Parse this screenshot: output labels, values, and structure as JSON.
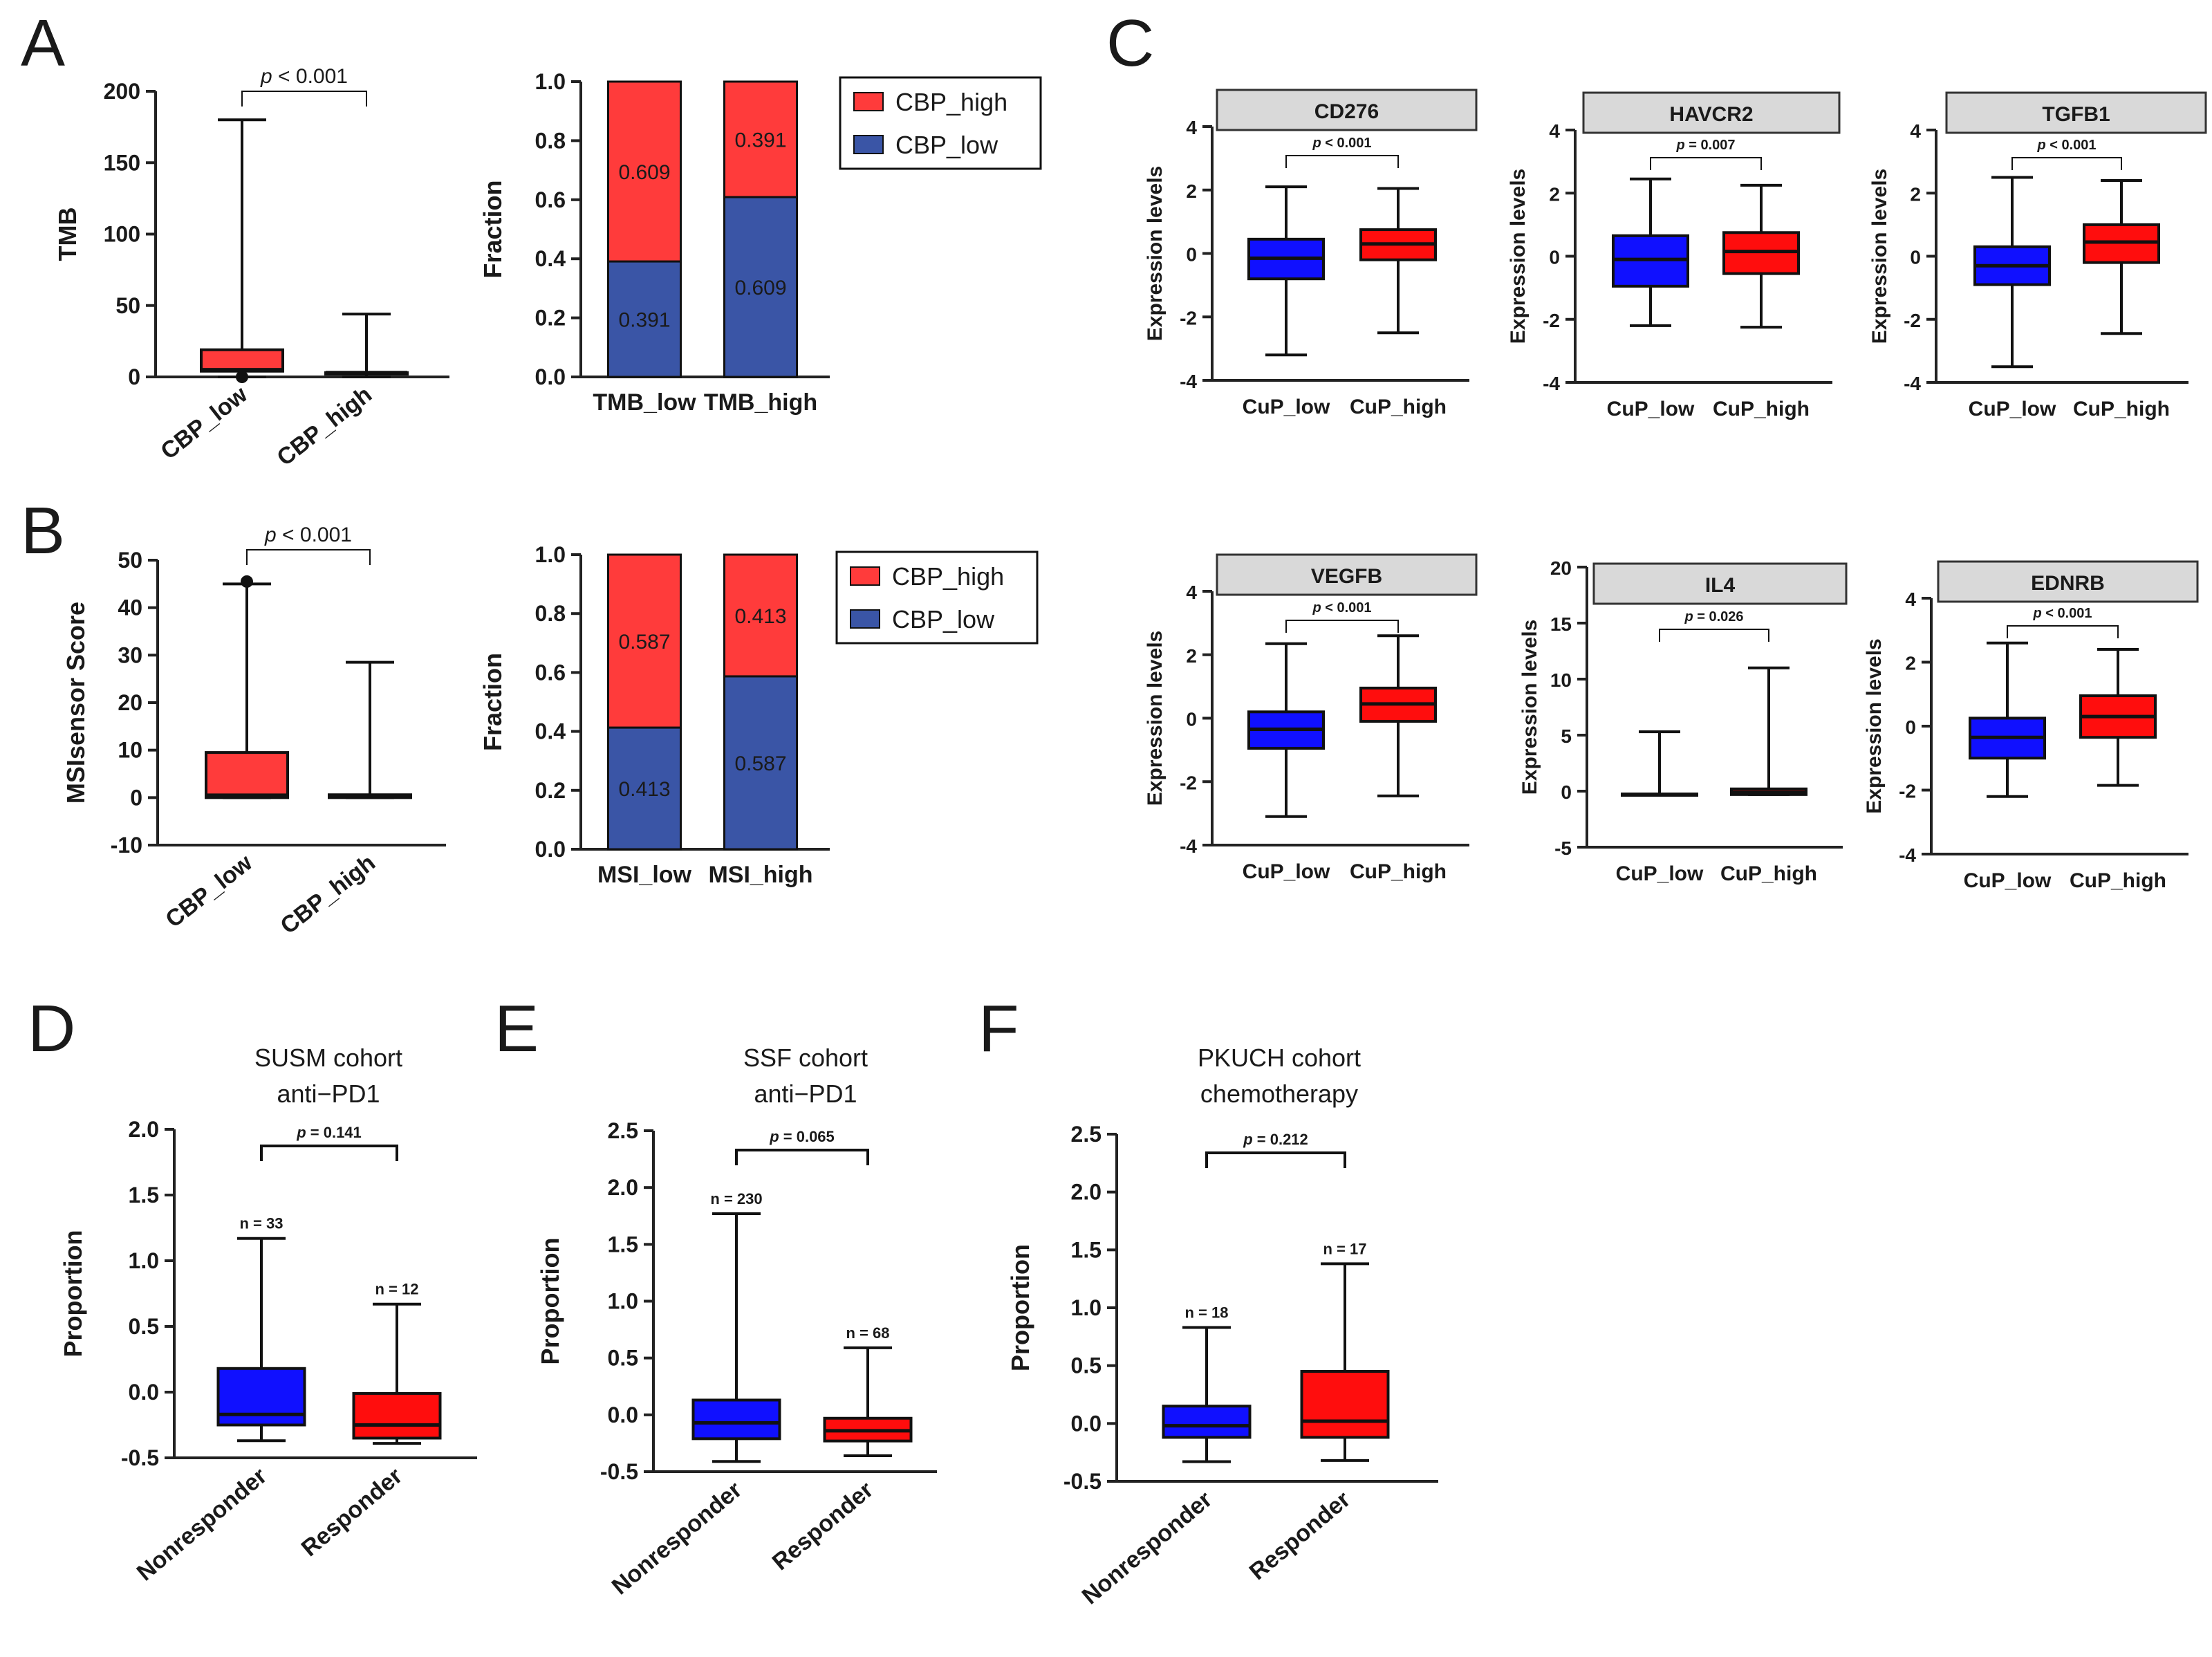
{
  "figure": {
    "colors": {
      "red": "#ff3b3b",
      "blue": "#3a55a6",
      "box_blue": "#1010ff",
      "box_red": "#ff0d0d",
      "strip": "#d9d9d9"
    },
    "panels": {
      "A": "A",
      "B": "B",
      "C": "C",
      "D": "D",
      "E": "E",
      "F": "F"
    }
  },
  "chart_data": [
    {
      "id": "A_box",
      "type": "box",
      "panel": "A",
      "ylabel": "TMB",
      "ylim": [
        0,
        200
      ],
      "yticks": [
        "0",
        "50",
        "100",
        "150",
        "200"
      ],
      "categories": [
        "CBP_low",
        "CBP_high"
      ],
      "boxes": [
        {
          "min": 0,
          "q1": 4,
          "median": 5,
          "q3": 19,
          "max": 180,
          "color": "#ff3b3b",
          "outlier": 0
        },
        {
          "min": 0,
          "q1": 2,
          "median": 3,
          "q3": 3,
          "max": 44,
          "color": "#3a55a6"
        }
      ],
      "pvalue": "p < 0.001"
    },
    {
      "id": "A_bar",
      "type": "bar",
      "stacked": true,
      "panel": "A",
      "ylabel": "Fraction",
      "ylim": [
        0,
        1
      ],
      "yticks": [
        "0.0",
        "0.2",
        "0.4",
        "0.6",
        "0.8",
        "1.0"
      ],
      "categories": [
        "TMB_low",
        "TMB_high"
      ],
      "series": [
        {
          "name": "CBP_low",
          "values": [
            0.391,
            0.609
          ],
          "labels": [
            "0.391",
            "0.609"
          ]
        },
        {
          "name": "CBP_high",
          "values": [
            0.609,
            0.391
          ],
          "labels": [
            "0.609",
            "0.391"
          ]
        }
      ],
      "legend": [
        "CBP_high",
        "CBP_low"
      ]
    },
    {
      "id": "B_box",
      "type": "box",
      "panel": "B",
      "ylabel": "MSIsensor Score",
      "ylim": [
        -10,
        50
      ],
      "yticks": [
        "-10",
        "0",
        "10",
        "20",
        "30",
        "40",
        "50"
      ],
      "categories": [
        "CBP_low",
        "CBP_high"
      ],
      "boxes": [
        {
          "min": 0,
          "q1": 0,
          "median": 0.5,
          "q3": 9.5,
          "max": 45,
          "color": "#ff3b3b",
          "outlier": 45.5
        },
        {
          "min": 0,
          "q1": 0,
          "median": 0.3,
          "q3": 0.6,
          "max": 28.5,
          "color": "#3a55a6"
        }
      ],
      "pvalue": "p < 0.001"
    },
    {
      "id": "B_bar",
      "type": "bar",
      "stacked": true,
      "panel": "B",
      "ylabel": "Fraction",
      "ylim": [
        0,
        1
      ],
      "yticks": [
        "0.0",
        "0.2",
        "0.4",
        "0.6",
        "0.8",
        "1.0"
      ],
      "categories": [
        "MSI_low",
        "MSI_high"
      ],
      "series": [
        {
          "name": "CBP_low",
          "values": [
            0.413,
            0.587
          ],
          "labels": [
            "0.413",
            "0.587"
          ]
        },
        {
          "name": "CBP_high",
          "values": [
            0.587,
            0.413
          ],
          "labels": [
            "0.587",
            "0.413"
          ]
        }
      ],
      "legend": [
        "CBP_high",
        "CBP_low"
      ]
    },
    {
      "id": "C_CD276",
      "type": "box",
      "panel": "C",
      "title": "CD276",
      "ylabel": "Expression levels",
      "ylim": [
        -4,
        4
      ],
      "yticks": [
        "-4",
        "-2",
        "0",
        "2",
        "4"
      ],
      "categories": [
        "CuP_low",
        "CuP_high"
      ],
      "boxes": [
        {
          "min": -3.2,
          "q1": -0.8,
          "median": -0.15,
          "q3": 0.45,
          "max": 2.1,
          "color": "#1010ff"
        },
        {
          "min": -2.5,
          "q1": -0.2,
          "median": 0.3,
          "q3": 0.75,
          "max": 2.05,
          "color": "#ff0d0d"
        }
      ],
      "pvalue": "p < 0.001"
    },
    {
      "id": "C_HAVCR2",
      "type": "box",
      "panel": "C",
      "title": "HAVCR2",
      "ylabel": "Expression levels",
      "ylim": [
        -4,
        4
      ],
      "yticks": [
        "-4",
        "-2",
        "0",
        "2",
        "4"
      ],
      "categories": [
        "CuP_low",
        "CuP_high"
      ],
      "boxes": [
        {
          "min": -2.2,
          "q1": -0.95,
          "median": -0.1,
          "q3": 0.65,
          "max": 2.45,
          "color": "#1010ff"
        },
        {
          "min": -2.25,
          "q1": -0.55,
          "median": 0.15,
          "q3": 0.75,
          "max": 2.25,
          "color": "#ff0d0d"
        }
      ],
      "pvalue": "p = 0.007"
    },
    {
      "id": "C_TGFB1",
      "type": "box",
      "panel": "C",
      "title": "TGFB1",
      "ylabel": "Expression levels",
      "ylim": [
        -4,
        4
      ],
      "yticks": [
        "-4",
        "-2",
        "0",
        "2",
        "4"
      ],
      "categories": [
        "CuP_low",
        "CuP_high"
      ],
      "boxes": [
        {
          "min": -3.5,
          "q1": -0.9,
          "median": -0.3,
          "q3": 0.3,
          "max": 2.5,
          "color": "#1010ff"
        },
        {
          "min": -2.45,
          "q1": -0.2,
          "median": 0.45,
          "q3": 1.0,
          "max": 2.4,
          "color": "#ff0d0d"
        }
      ],
      "pvalue": "p < 0.001"
    },
    {
      "id": "C_VEGFB",
      "type": "box",
      "panel": "C",
      "title": "VEGFB",
      "ylabel": "Expression levels",
      "ylim": [
        -4,
        4
      ],
      "yticks": [
        "-4",
        "-2",
        "0",
        "2",
        "4"
      ],
      "categories": [
        "CuP_low",
        "CuP_high"
      ],
      "boxes": [
        {
          "min": -3.1,
          "q1": -0.95,
          "median": -0.35,
          "q3": 0.2,
          "max": 2.35,
          "color": "#1010ff"
        },
        {
          "min": -2.45,
          "q1": -0.1,
          "median": 0.45,
          "q3": 0.95,
          "max": 2.6,
          "color": "#ff0d0d"
        }
      ],
      "pvalue": "p < 0.001"
    },
    {
      "id": "C_IL4",
      "type": "box",
      "panel": "C",
      "title": "IL4",
      "ylabel": "Expression levels",
      "ylim": [
        -5,
        20
      ],
      "yticks": [
        "-5",
        "0",
        "5",
        "10",
        "15",
        "20"
      ],
      "categories": [
        "CuP_low",
        "CuP_high"
      ],
      "boxes": [
        {
          "min": -0.3,
          "q1": -0.3,
          "median": -0.3,
          "q3": -0.25,
          "max": 5.3,
          "color": "#1010ff"
        },
        {
          "min": -0.3,
          "q1": -0.3,
          "median": -0.1,
          "q3": 0.2,
          "max": 11,
          "color": "#ff0d0d"
        }
      ],
      "pvalue": "p = 0.026"
    },
    {
      "id": "C_EDNRB",
      "type": "box",
      "panel": "C",
      "title": "EDNRB",
      "ylabel": "Expression levels",
      "ylim": [
        -4,
        4
      ],
      "yticks": [
        "-4",
        "-2",
        "0",
        "2",
        "4"
      ],
      "categories": [
        "CuP_low",
        "CuP_high"
      ],
      "boxes": [
        {
          "min": -2.2,
          "q1": -1.0,
          "median": -0.35,
          "q3": 0.25,
          "max": 2.6,
          "color": "#1010ff"
        },
        {
          "min": -1.85,
          "q1": -0.35,
          "median": 0.3,
          "q3": 0.95,
          "max": 2.4,
          "color": "#ff0d0d"
        }
      ],
      "pvalue": "p < 0.001"
    },
    {
      "id": "D_box",
      "type": "box",
      "panel": "D",
      "title": "SUSM cohort",
      "subtitle": "anti−PD1",
      "ylabel": "Proportion",
      "ylim": [
        -0.5,
        2.0
      ],
      "yticks": [
        "-0.5",
        "0.0",
        "0.5",
        "1.0",
        "1.5",
        "2.0"
      ],
      "categories": [
        "Nonresponder",
        "Responder"
      ],
      "boxes": [
        {
          "min": -0.37,
          "q1": -0.25,
          "median": -0.17,
          "q3": 0.18,
          "max": 1.17,
          "color": "#1010ff",
          "n": "n = 33"
        },
        {
          "min": -0.39,
          "q1": -0.35,
          "median": -0.25,
          "q3": -0.01,
          "max": 0.67,
          "color": "#ff0d0d",
          "n": "n = 12"
        }
      ],
      "pvalue": "p = 0.141"
    },
    {
      "id": "E_box",
      "type": "box",
      "panel": "E",
      "title": "SSF cohort",
      "subtitle": "anti−PD1",
      "ylabel": "Proportion",
      "ylim": [
        -0.5,
        2.5
      ],
      "yticks": [
        "-0.5",
        "0.0",
        "0.5",
        "1.0",
        "1.5",
        "2.0",
        "2.5"
      ],
      "categories": [
        "Nonresponder",
        "Responder"
      ],
      "boxes": [
        {
          "min": -0.41,
          "q1": -0.21,
          "median": -0.07,
          "q3": 0.13,
          "max": 1.77,
          "color": "#1010ff",
          "n": "n = 230"
        },
        {
          "min": -0.36,
          "q1": -0.23,
          "median": -0.14,
          "q3": -0.03,
          "max": 0.59,
          "color": "#ff0d0d",
          "n": "n = 68"
        }
      ],
      "pvalue": "p = 0.065"
    },
    {
      "id": "F_box",
      "type": "box",
      "panel": "F",
      "title": "PKUCH cohort",
      "subtitle": "chemotherapy",
      "ylabel": "Proportion",
      "ylim": [
        -0.5,
        2.5
      ],
      "yticks": [
        "-0.5",
        "0.0",
        "0.5",
        "1.0",
        "1.5",
        "2.0",
        "2.5"
      ],
      "categories": [
        "Nonresponder",
        "Responder"
      ],
      "boxes": [
        {
          "min": -0.33,
          "q1": -0.12,
          "median": -0.02,
          "q3": 0.15,
          "max": 0.83,
          "color": "#1010ff",
          "n": "n = 18"
        },
        {
          "min": -0.32,
          "q1": -0.12,
          "median": 0.02,
          "q3": 0.45,
          "max": 1.38,
          "color": "#ff0d0d",
          "n": "n = 17"
        }
      ],
      "pvalue": "p = 0.212"
    }
  ]
}
